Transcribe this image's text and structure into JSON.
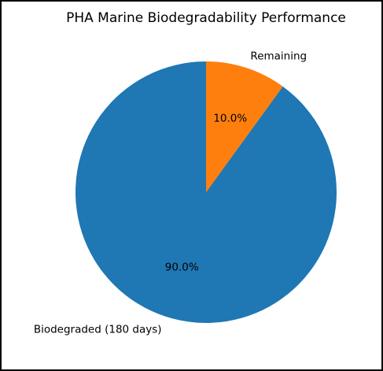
{
  "chart_data": {
    "type": "pie",
    "title": "PHA Marine Biodegradability Performance",
    "start_angle_deg": 90,
    "direction": "counterclockwise",
    "slices": [
      {
        "label": "Biodegraded (180 days)",
        "value": 90.0,
        "pct_label": "90.0%",
        "color": "#1f77b4"
      },
      {
        "label": "Remaining",
        "value": 10.0,
        "pct_label": "10.0%",
        "color": "#ff7f0e"
      }
    ]
  }
}
